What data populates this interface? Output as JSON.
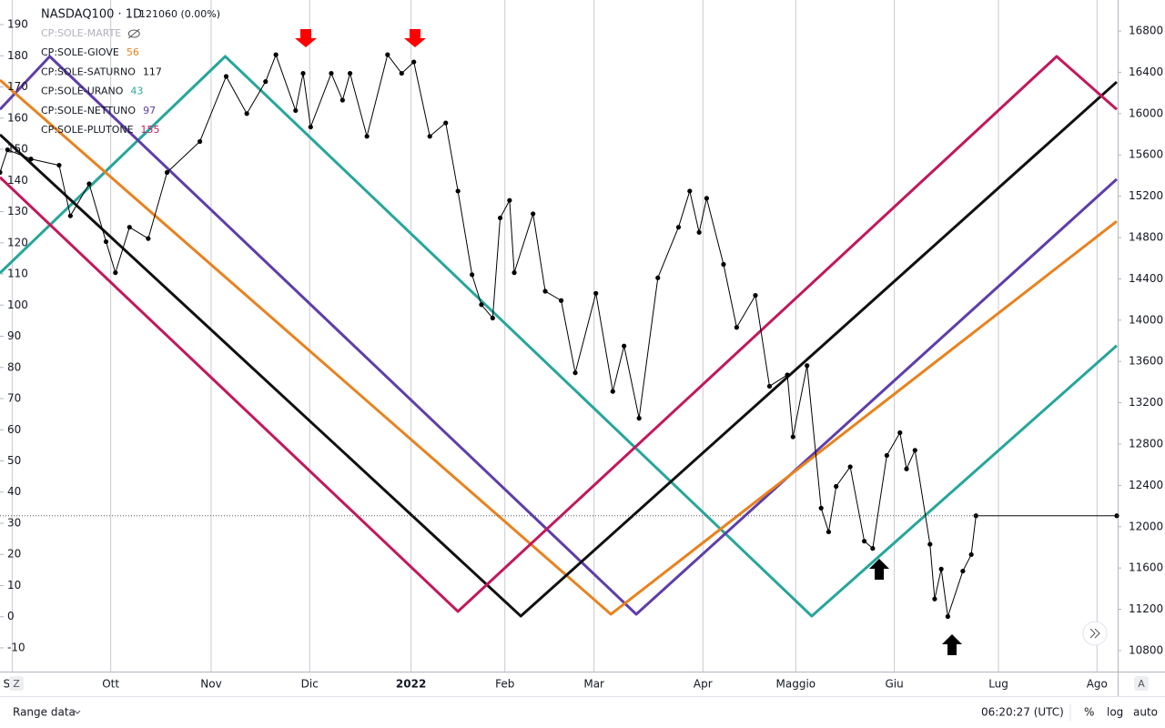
{
  "chart_data": {
    "type": "line",
    "title": "NASDAQ100 · 1D",
    "last_price": "12106",
    "change": "0 (0.00%)",
    "xlim": [
      0,
      238.2
    ],
    "xticks": [
      {
        "value": 2.6,
        "label": "Set"
      },
      {
        "value": 23.6,
        "label": "Ott"
      },
      {
        "value": 45,
        "label": "Nov"
      },
      {
        "value": 66,
        "label": "Dic"
      },
      {
        "value": 87.6,
        "label": "2022"
      },
      {
        "value": 107.6,
        "label": "Feb"
      },
      {
        "value": 126.6,
        "label": "Mar"
      },
      {
        "value": 149.8,
        "label": "Apr"
      },
      {
        "value": 169.6,
        "label": "Maggio"
      },
      {
        "value": 190.6,
        "label": "Giu"
      },
      {
        "value": 212.8,
        "label": "Lug"
      },
      {
        "value": 233.8,
        "label": "Ago"
      }
    ],
    "ylim": [
      -17.6,
      197.9
    ],
    "yticks": [
      -10,
      0,
      10,
      20,
      30,
      40,
      50,
      60,
      70,
      80,
      90,
      100,
      110,
      120,
      130,
      140,
      150,
      160,
      170,
      180,
      190
    ],
    "y2lim": [
      10597,
      17100
    ],
    "y2ticks": [
      10800,
      11200,
      11600,
      12000,
      12400,
      12800,
      13200,
      13600,
      14000,
      14400,
      14800,
      15200,
      15600,
      16000,
      16400,
      16800
    ],
    "grid": "vertical",
    "legend": [
      {
        "name": "CP:SOLE-MARTE",
        "color": "#b0b0c0",
        "hidden": true
      },
      {
        "name": "CP:SOLE-GIOVE",
        "value": 56,
        "color": "#e8821e"
      },
      {
        "name": "CP:SOLE-SATURNO",
        "value": 117,
        "color": "#111111"
      },
      {
        "name": "CP:SOLE-URANO",
        "value": 43,
        "color": "#26a69a"
      },
      {
        "name": "CP:SOLE-NETTUNO",
        "value": 97,
        "color": "#5e3ea8"
      },
      {
        "name": "CP:SOLE-PLUTONE",
        "value": 155,
        "color": "#c2185b"
      }
    ],
    "series": [
      {
        "color": "#26a69a",
        "x": [
          0,
          48,
          173,
          238
        ],
        "values": [
          110.3,
          179.8,
          0.2,
          87
        ]
      },
      {
        "color": "#5e3ea8",
        "x": [
          0,
          10.6,
          135.6,
          238
        ],
        "values": [
          162.8,
          179.8,
          0.8,
          140.4
        ]
      },
      {
        "color": "#e8821e",
        "x": [
          0,
          130.2,
          238
        ],
        "values": [
          172.2,
          0.8,
          126.9
        ]
      },
      {
        "color": "#111111",
        "x": [
          0,
          111,
          238
        ],
        "values": [
          154.7,
          0.2,
          171.6
        ]
      },
      {
        "color": "#c2185b",
        "x": [
          0,
          97.6,
          225.2,
          238
        ],
        "values": [
          141,
          1.7,
          179.8,
          162.8
        ]
      },
      {
        "color": "#000000",
        "axis": "y2",
        "markers": true,
        "x": [
          0,
          1.6,
          6.6,
          12.6,
          15,
          19,
          22.6,
          24.6,
          27.6,
          31.6,
          35.6,
          42.6,
          48.2,
          52.6,
          56.6,
          58.8,
          63,
          64.6,
          66.2,
          70.6,
          73,
          74.6,
          78.2,
          82.6,
          85.6,
          88.2,
          91.6,
          95,
          97.6,
          100.6,
          102.6,
          105,
          106.6,
          108.6,
          109.6,
          113.6,
          116.2,
          119.6,
          122.6,
          127,
          130.6,
          133,
          136.2,
          140.2,
          144.6,
          147,
          149,
          150.6,
          154.2,
          157,
          161,
          164,
          167.8,
          169,
          172,
          175,
          176.6,
          178.2,
          181.2,
          184.2,
          186,
          189,
          191.8,
          193.2,
          195,
          198.2,
          199.2,
          200.6,
          202,
          205.2,
          207,
          208,
          238
        ],
        "values": [
          15430,
          15650,
          15560,
          15500,
          15010,
          15320,
          14760,
          14460,
          14900,
          14790,
          15430,
          15730,
          16360,
          16000,
          16310,
          16570,
          16030,
          16390,
          15870,
          16390,
          16130,
          16390,
          15780,
          16570,
          16390,
          16500,
          15780,
          15910,
          15250,
          14440,
          14150,
          14020,
          14990,
          15160,
          14460,
          15030,
          14280,
          14190,
          13490,
          14260,
          13310,
          13750,
          13050,
          14410,
          14900,
          15250,
          14850,
          15180,
          14540,
          13930,
          14240,
          13360,
          13470,
          12870,
          13560,
          12180,
          11950,
          12390,
          12580,
          11860,
          11790,
          12690,
          12910,
          12560,
          12740,
          11830,
          11300,
          11590,
          11130,
          11570,
          11730,
          12106,
          12106
        ]
      }
    ]
  },
  "toolbar": {
    "range": "Range data",
    "time": "06:20:27 (UTC)",
    "percent": "%",
    "log": "log",
    "auto": "auto",
    "left_button": "Z",
    "right_button": "A"
  }
}
